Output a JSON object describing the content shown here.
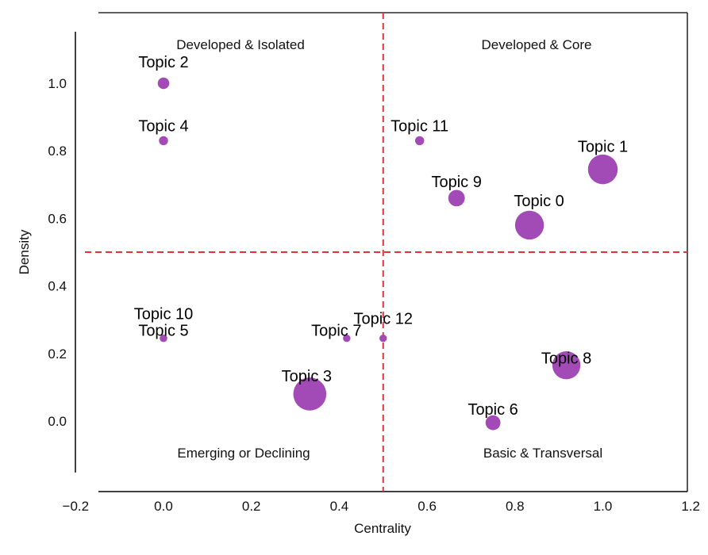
{
  "chart_data": {
    "type": "scatter",
    "xlabel": "Centrality",
    "ylabel": "Density",
    "xlim": [
      -0.2,
      1.2
    ],
    "ylim": [
      -0.15,
      1.12
    ],
    "x_ticks": [
      -0.2,
      0.0,
      0.2,
      0.4,
      0.6,
      0.8,
      1.0,
      1.2
    ],
    "x_tick_labels": [
      "−0.2",
      "0.0",
      "0.2",
      "0.4",
      "0.6",
      "0.8",
      "1.0",
      "1.2"
    ],
    "y_ticks": [
      0.0,
      0.2,
      0.4,
      0.6,
      0.8,
      1.0
    ],
    "y_tick_labels": [
      "0.0",
      "0.2",
      "0.4",
      "0.6",
      "0.8",
      "1.0"
    ],
    "reference_lines": {
      "x": 0.5,
      "y": 0.5,
      "style": "dashed",
      "color": "#e0323a"
    },
    "marker_color": "#a24ab6",
    "quadrant_labels": {
      "top_left": "Developed & Isolated",
      "top_right": "Developed & Core",
      "bottom_left": "Emerging or Declining",
      "bottom_right": "Basic & Transversal"
    },
    "points": [
      {
        "label": "Topic 0",
        "x": 0.833,
        "y": 0.58,
        "size": 3.5
      },
      {
        "label": "Topic 1",
        "x": 1.0,
        "y": 0.745,
        "size": 3.6
      },
      {
        "label": "Topic 2",
        "x": 0.0,
        "y": 1.0,
        "size": 1.4
      },
      {
        "label": "Topic 3",
        "x": 0.333,
        "y": 0.08,
        "size": 4.0
      },
      {
        "label": "Topic 4",
        "x": 0.0,
        "y": 0.83,
        "size": 1.1
      },
      {
        "label": "Topic 5",
        "x": 0.0,
        "y": 0.245,
        "size": 0.9
      },
      {
        "label": "Topic 6",
        "x": 0.75,
        "y": -0.005,
        "size": 1.8
      },
      {
        "label": "Topic 7",
        "x": 0.417,
        "y": 0.245,
        "size": 0.9
      },
      {
        "label": "Topic 8",
        "x": 0.917,
        "y": 0.165,
        "size": 3.4
      },
      {
        "label": "Topic 9",
        "x": 0.667,
        "y": 0.66,
        "size": 2.0
      },
      {
        "label": "Topic 10",
        "x": 0.0,
        "y": 0.245,
        "size": 0.9
      },
      {
        "label": "Topic 11",
        "x": 0.583,
        "y": 0.83,
        "size": 1.1
      },
      {
        "label": "Topic 12",
        "x": 0.5,
        "y": 0.245,
        "size": 0.9
      }
    ]
  }
}
